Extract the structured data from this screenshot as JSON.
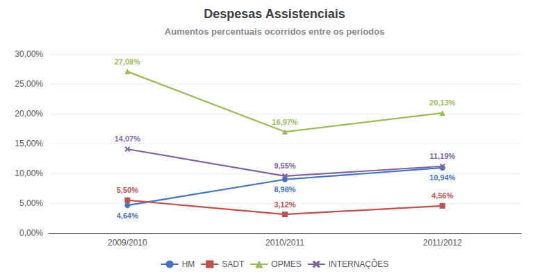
{
  "chart_data": {
    "type": "line",
    "title": "Despesas Assistenciais",
    "subtitle": "Aumentos percentuais ocorridos entre os períodos",
    "categories": [
      "2009/2010",
      "2010/2011",
      "2011/2012"
    ],
    "series": [
      {
        "name": "HM",
        "color": "#4472C4",
        "marker": "circle",
        "line_style": "solid",
        "values": [
          4.64,
          8.98,
          10.94
        ],
        "value_labels": [
          "4,64%",
          "8,98%",
          "10,94%"
        ]
      },
      {
        "name": "SADT",
        "color": "#C0504D",
        "marker": "square",
        "line_style": "solid",
        "values": [
          5.5,
          3.12,
          4.56
        ],
        "value_labels": [
          "5,50%",
          "3,12%",
          "4,56%"
        ]
      },
      {
        "name": "OPMES",
        "color": "#9BBB59",
        "marker": "triangle",
        "line_style": "solid",
        "values": [
          27.08,
          16.97,
          20.13
        ],
        "value_labels": [
          "27,08%",
          "16,97%",
          "20,13%"
        ]
      },
      {
        "name": "INTERNAÇÕES",
        "color": "#8064A2",
        "marker": "x",
        "line_style": "solid",
        "values": [
          14.07,
          9.55,
          11.19
        ],
        "value_labels": [
          "14,07%",
          "9,55%",
          "11,19%"
        ]
      }
    ],
    "ylim": [
      0,
      30
    ],
    "yticks": [
      {
        "value": 0,
        "label": "0,00%"
      },
      {
        "value": 5,
        "label": "5,00%"
      },
      {
        "value": 10,
        "label": "10,00%"
      },
      {
        "value": 15,
        "label": "15,00%"
      },
      {
        "value": 20,
        "label": "20,00%"
      },
      {
        "value": 25,
        "label": "25,00%"
      },
      {
        "value": 30,
        "label": "30,00%"
      }
    ],
    "grid": true,
    "legend": "bottom",
    "data_labels": true
  }
}
